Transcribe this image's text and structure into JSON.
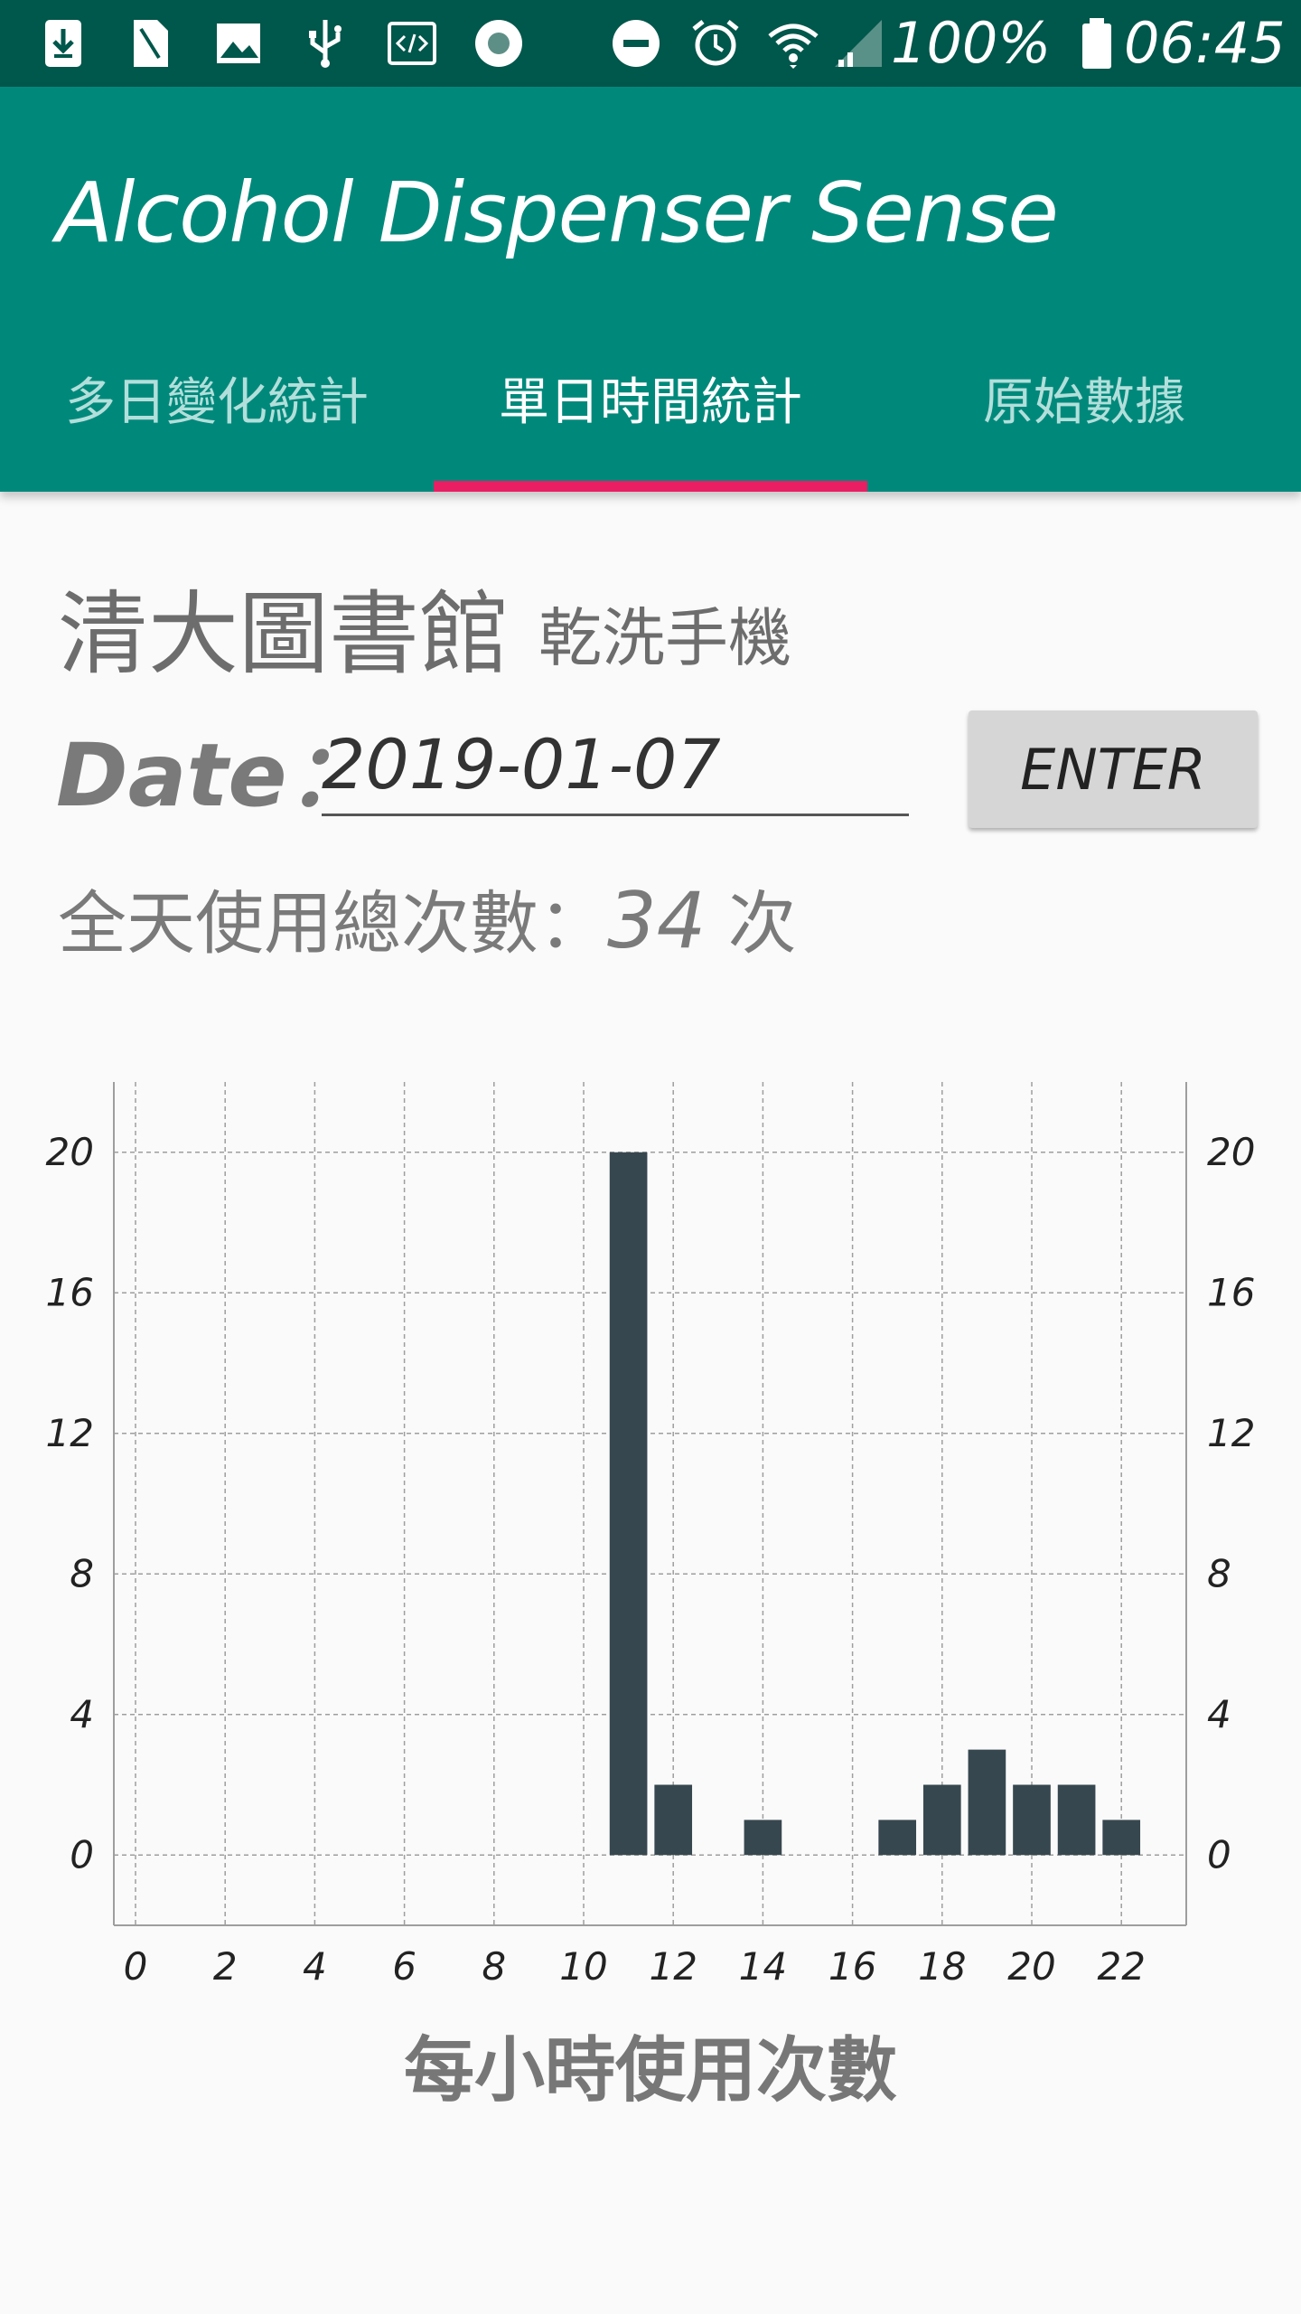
{
  "status_bar": {
    "battery_text": "100%",
    "time": "06:45",
    "icons": [
      "download-icon",
      "sim-card-icon",
      "image-icon",
      "usb-icon",
      "code-icon",
      "record-icon",
      "do-not-disturb-icon",
      "alarm-icon",
      "wifi-icon",
      "signal-icon",
      "battery-icon"
    ]
  },
  "app": {
    "title": "Alcohol Dispenser Sense",
    "brand_color": "#00897b",
    "status_color": "#00574b",
    "accent_color": "#e91e63"
  },
  "tabs": [
    {
      "label": "多日變化統計",
      "active": false
    },
    {
      "label": "單日時間統計",
      "active": true
    },
    {
      "label": "原始數據",
      "active": false
    }
  ],
  "location": {
    "name": "清大圖書館",
    "device": "乾洗手機"
  },
  "date": {
    "label": "Date：",
    "value": "2019-01-07"
  },
  "enter_label": "ENTER",
  "total": {
    "prefix": "全天使用總次數：",
    "value": "34",
    "suffix": " 次"
  },
  "chart_data": {
    "type": "bar",
    "x": [
      0,
      1,
      2,
      3,
      4,
      5,
      6,
      7,
      8,
      9,
      10,
      11,
      12,
      13,
      14,
      15,
      16,
      17,
      18,
      19,
      20,
      21,
      22,
      23
    ],
    "values": [
      0,
      0,
      0,
      0,
      0,
      0,
      0,
      0,
      0,
      0,
      0,
      20,
      2,
      0,
      1,
      0,
      0,
      1,
      2,
      3,
      2,
      2,
      1,
      0
    ],
    "xticks": [
      0,
      2,
      4,
      6,
      8,
      10,
      12,
      14,
      16,
      18,
      20,
      22
    ],
    "yticks": [
      0,
      4,
      8,
      12,
      16,
      20
    ],
    "ylim": [
      -2,
      22
    ],
    "xlabel": "每小時使用次數",
    "ylabel": "",
    "bar_color": "#37474f",
    "grid": true,
    "right_axis": true
  }
}
